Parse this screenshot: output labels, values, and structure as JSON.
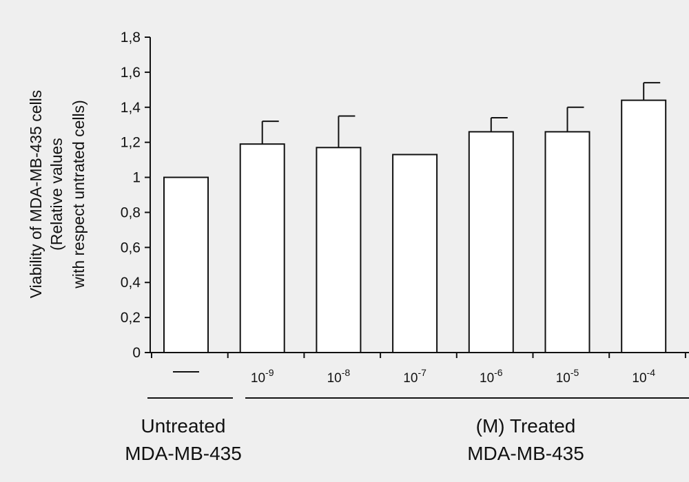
{
  "chart_data": {
    "type": "bar",
    "ylabel_lines": [
      "Viability of MDA-MB-435 cells",
      "(Relative values",
      "with respect untrated cells)"
    ],
    "yticks": [
      "0",
      "0,2",
      "0,4",
      "0,6",
      "0,8",
      "1",
      "1,2",
      "1,4",
      "1,6",
      "1,8"
    ],
    "ylim": [
      0,
      1.8
    ],
    "categories": [
      {
        "label": "—",
        "base": "",
        "exp": ""
      },
      {
        "label": "10-9",
        "base": "10",
        "exp": "-9"
      },
      {
        "label": "10-8",
        "base": "10",
        "exp": "-8"
      },
      {
        "label": "10-7",
        "base": "10",
        "exp": "-7"
      },
      {
        "label": "10-6",
        "base": "10",
        "exp": "-6"
      },
      {
        "label": "10-5",
        "base": "10",
        "exp": "-5"
      },
      {
        "label": "10-4",
        "base": "10",
        "exp": "-4"
      }
    ],
    "values": [
      1.0,
      1.19,
      1.17,
      1.13,
      1.26,
      1.26,
      1.44
    ],
    "errors": [
      0.0,
      0.13,
      0.18,
      0.0,
      0.08,
      0.14,
      0.1
    ],
    "groups": [
      {
        "lines": [
          "Untreated",
          "MDA-MB-435"
        ]
      },
      {
        "lines": [
          "(M) Treated",
          "MDA-MB-435"
        ]
      }
    ],
    "grid": false,
    "legend": "none"
  }
}
